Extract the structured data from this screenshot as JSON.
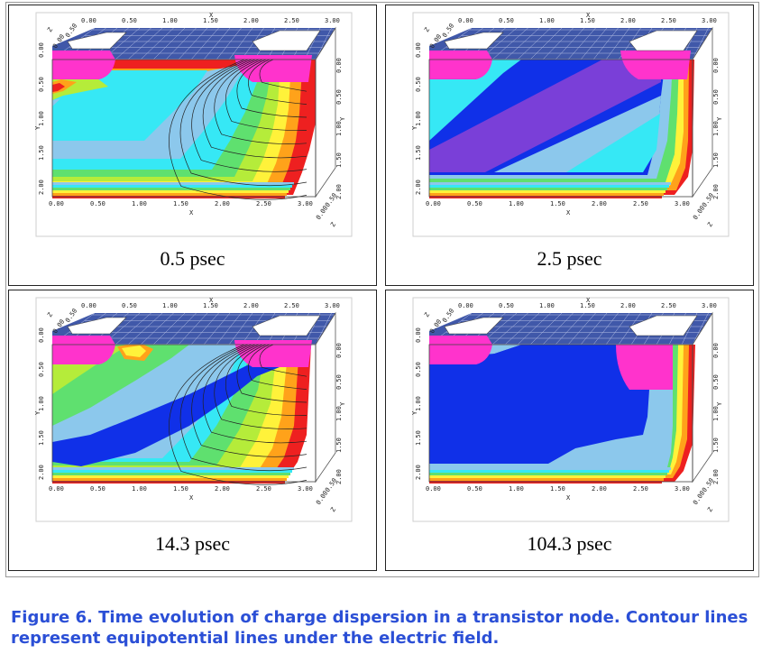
{
  "panels": [
    {
      "label": "0.5 psec"
    },
    {
      "label": "2.5 psec"
    },
    {
      "label": "14.3 psec"
    },
    {
      "label": "104.3 psec"
    }
  ],
  "axes": {
    "x_label": "X",
    "y_label": "Y",
    "z_label": "Z",
    "x_ticks": [
      "0.00",
      "0.50",
      "1.00",
      "1.50",
      "2.00",
      "2.50",
      "3.00"
    ],
    "y_ticks": [
      "0.00",
      "0.50",
      "1.00",
      "1.50",
      "2.00"
    ],
    "z_ticks": [
      "0.00",
      "0.50"
    ]
  },
  "caption": "Figure 6. Time evolution of charge dispersion in a transistor node. Contour lines represent  equipotential lines under the electric field.",
  "colors": {
    "contact_magenta": "#ff33cc",
    "mesh_blue": "#1f3b9a",
    "dark_blue": "#1030e8",
    "violet": "#7a3fd8",
    "light_blue": "#8cc8ec",
    "cyan": "#36e8f5",
    "green": "#5fe06f",
    "yellow_green": "#b5ec3a",
    "yellow": "#fff23a",
    "orange": "#ffa21a",
    "red": "#ee2020",
    "caption_blue": "#2b4fd6"
  }
}
